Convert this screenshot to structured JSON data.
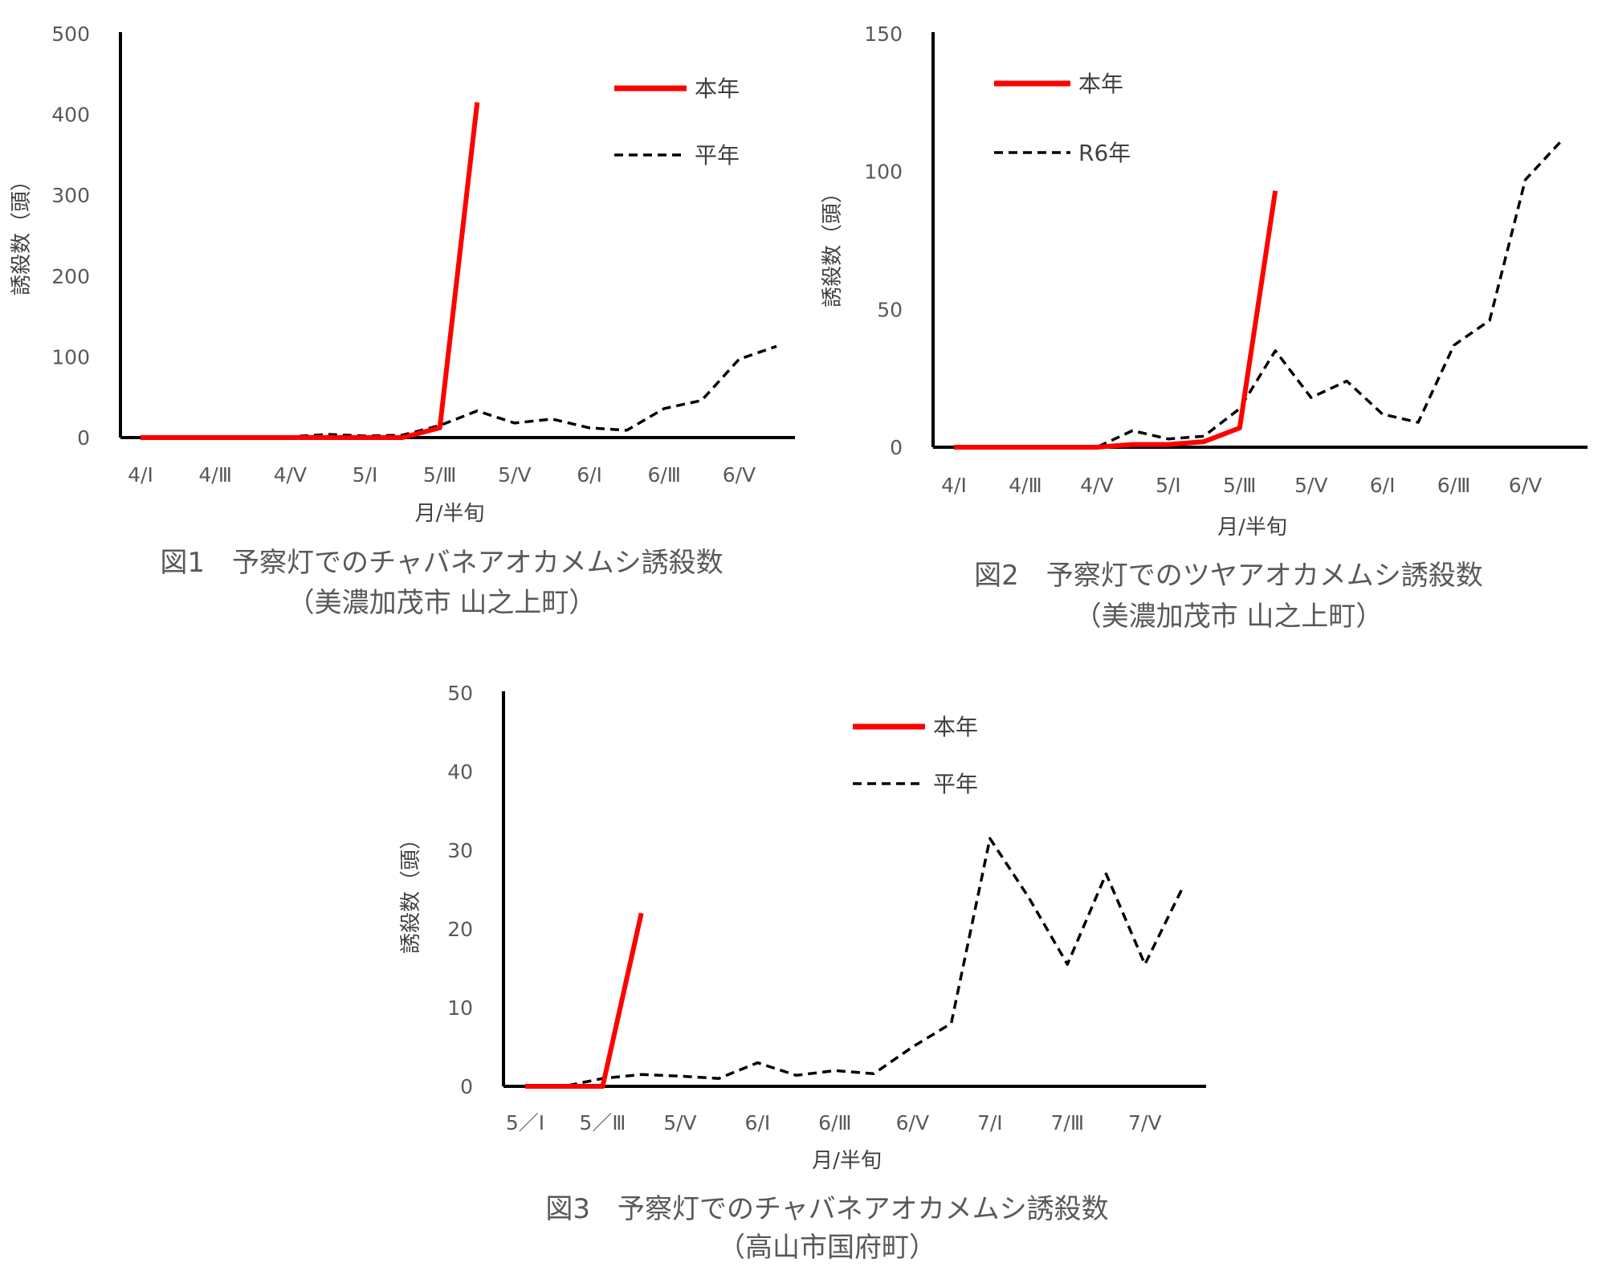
{
  "chart_data": [
    {
      "type": "line",
      "caption": [
        "図1　予察灯でのチャバネアオカメムシ誘殺数",
        "（美濃加茂市 山之上町）"
      ],
      "xlabel": "月/半旬",
      "ylabel": "誘殺数（頭）",
      "ylim": [
        0,
        500
      ],
      "yticks": [
        "0",
        "100",
        "200",
        "300",
        "400",
        "500"
      ],
      "x_tick_labels": [
        "4/Ⅰ",
        "4/Ⅲ",
        "4/Ⅴ",
        "5/Ⅰ",
        "5/Ⅲ",
        "5/Ⅴ",
        "6/Ⅰ",
        "6/Ⅲ",
        "6/Ⅴ"
      ],
      "x_points": 18,
      "legend_position": "top-right",
      "series": [
        {
          "name": "本年",
          "color": "#ff0000",
          "style": "solid",
          "values": [
            0,
            0,
            0,
            0,
            0,
            0,
            0,
            0,
            12,
            415
          ]
        },
        {
          "name": "平年",
          "color": "#000000",
          "style": "dashed",
          "values": [
            0,
            0,
            0,
            0,
            1,
            4,
            2,
            3,
            15,
            33,
            18,
            23,
            12,
            9,
            36,
            46,
            97,
            113
          ]
        }
      ]
    },
    {
      "type": "line",
      "caption": [
        "図2　予察灯でのツヤアオカメムシ誘殺数",
        "（美濃加茂市 山之上町）"
      ],
      "xlabel": "月/半旬",
      "ylabel": "誘殺数（頭）",
      "ylim": [
        0,
        150
      ],
      "yticks": [
        "0",
        "50",
        "100",
        "150"
      ],
      "x_tick_labels": [
        "4/Ⅰ",
        "4/Ⅲ",
        "4/Ⅴ",
        "5/Ⅰ",
        "5/Ⅲ",
        "5/Ⅴ",
        "6/Ⅰ",
        "6/Ⅲ",
        "6/Ⅴ"
      ],
      "x_points": 18,
      "legend_position": "top-left",
      "series": [
        {
          "name": "本年",
          "color": "#ff0000",
          "style": "solid",
          "values": [
            0,
            0,
            0,
            0,
            0,
            1,
            1,
            2,
            7,
            93
          ]
        },
        {
          "name": "R6年",
          "color": "#000000",
          "style": "dashed",
          "values": [
            0,
            0,
            0,
            0,
            0,
            6,
            3,
            4,
            14,
            35,
            18,
            24,
            12,
            9,
            37,
            46,
            97,
            111
          ]
        }
      ]
    },
    {
      "type": "line",
      "caption": [
        "図3　予察灯でのチャバネアオカメムシ誘殺数",
        "（高山市国府町）"
      ],
      "xlabel": "月/半旬",
      "ylabel": "誘殺数（頭）",
      "ylim": [
        0,
        50
      ],
      "yticks": [
        "0",
        "10",
        "20",
        "30",
        "40",
        "50"
      ],
      "x_tick_labels": [
        "5／Ⅰ",
        "5／Ⅲ",
        "5/Ⅴ",
        "6/Ⅰ",
        "6/Ⅲ",
        "6/Ⅴ",
        "7/Ⅰ",
        "7/Ⅲ",
        "7/Ⅴ"
      ],
      "x_points": 18,
      "legend_position": "top-center",
      "series": [
        {
          "name": "本年",
          "color": "#ff0000",
          "style": "solid",
          "values": [
            0,
            0,
            0,
            22
          ]
        },
        {
          "name": "平年",
          "color": "#000000",
          "style": "dashed",
          "values": [
            0,
            0,
            1,
            1.5,
            1.3,
            1,
            3,
            1.4,
            2,
            1.6,
            5,
            8,
            31.5,
            24,
            15.5,
            27,
            15.5,
            25.5
          ]
        }
      ]
    }
  ]
}
